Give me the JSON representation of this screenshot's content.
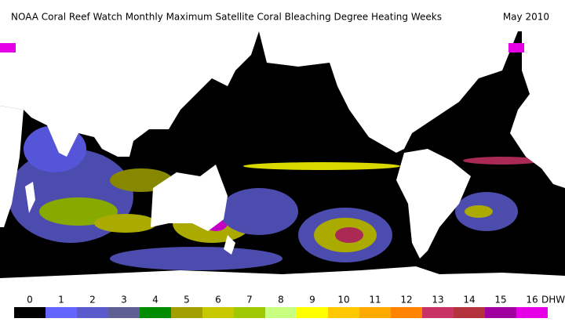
{
  "title": "NOAA Coral Reef Watch Monthly Maximum Satellite Coral Bleaching Degree Heating Weeks",
  "date": "May 2010",
  "colorbar": {
    "labels": [
      "0",
      "1",
      "2",
      "3",
      "4",
      "5",
      "6",
      "7",
      "8",
      "9",
      "10",
      "11",
      "12",
      "13",
      "14",
      "15",
      "16"
    ],
    "unit": "DHW",
    "colors": [
      "#000000",
      "#6464ff",
      "#5a5acd",
      "#5f5f96",
      "#008c00",
      "#a0a000",
      "#c8c800",
      "#a0c800",
      "#c8ff80",
      "#ffff00",
      "#ffc800",
      "#ffaa00",
      "#ff8200",
      "#c83264",
      "#b4323c",
      "#a000a0",
      "#e600e6"
    ]
  }
}
